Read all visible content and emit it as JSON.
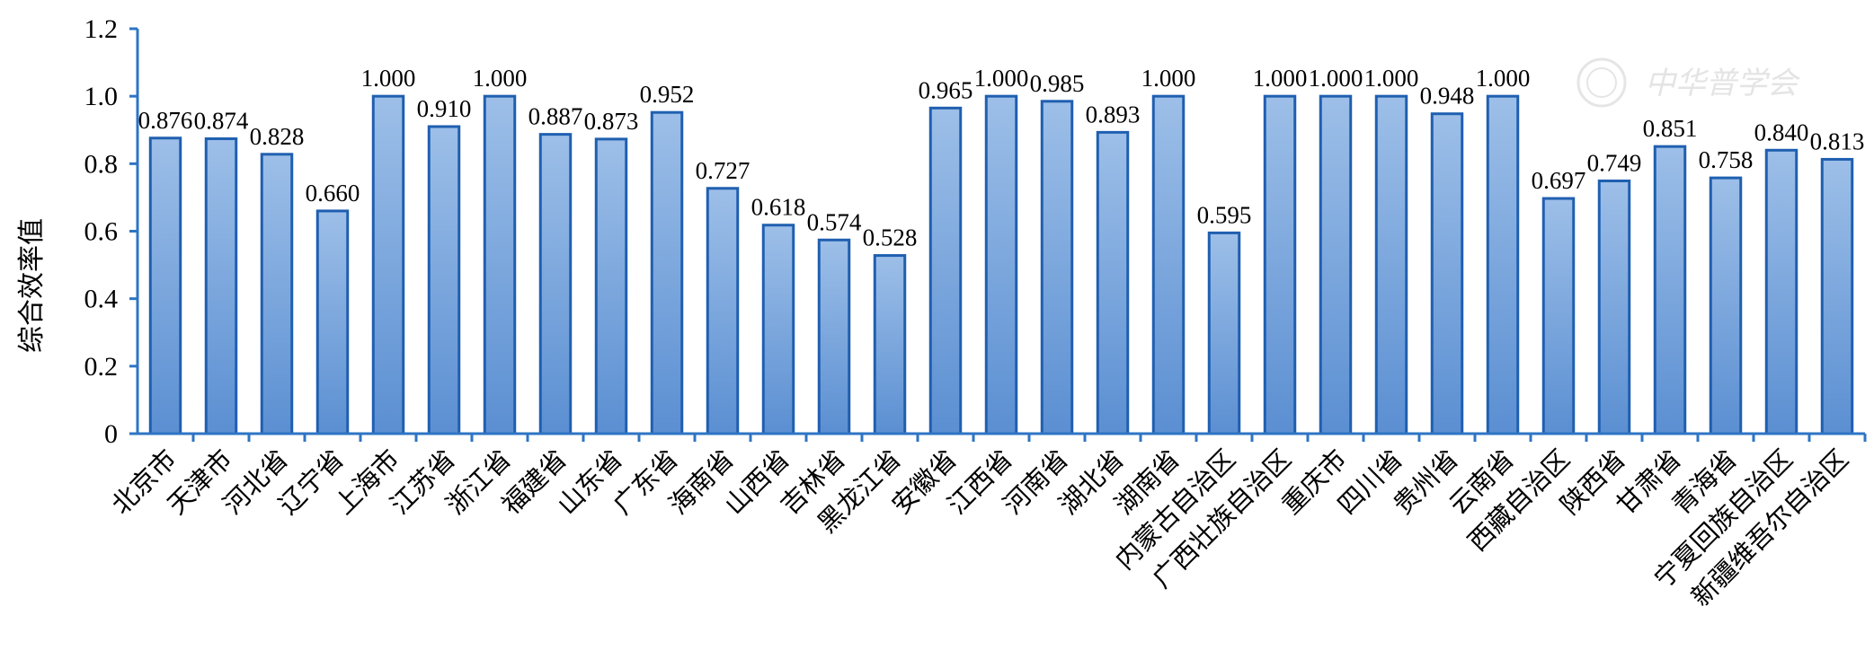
{
  "chart_data": {
    "type": "bar",
    "ylabel": "综合效率值",
    "xlabel": "",
    "ylim": [
      0,
      1.2
    ],
    "yticks": [
      "0",
      "0.2",
      "0.4",
      "0.6",
      "0.8",
      "1.0",
      "1.2"
    ],
    "categories": [
      "北京市",
      "天津市",
      "河北省",
      "辽宁省",
      "上海市",
      "江苏省",
      "浙江省",
      "福建省",
      "山东省",
      "广东省",
      "海南省",
      "山西省",
      "吉林省",
      "黑龙江省",
      "安徽省",
      "江西省",
      "河南省",
      "湖北省",
      "湖南省",
      "内蒙古自治区",
      "广西壮族自治区",
      "重庆市",
      "四川省",
      "贵州省",
      "云南省",
      "西藏自治区",
      "陕西省",
      "甘肃省",
      "青海省",
      "宁夏回族自治区",
      "新疆维吾尔自治区"
    ],
    "values": [
      0.876,
      0.874,
      0.828,
      0.66,
      1.0,
      0.91,
      1.0,
      0.887,
      0.873,
      0.952,
      0.727,
      0.618,
      0.574,
      0.528,
      0.965,
      1.0,
      0.985,
      0.893,
      1.0,
      0.595,
      1.0,
      1.0,
      1.0,
      0.948,
      1.0,
      0.697,
      0.749,
      0.851,
      0.758,
      0.84,
      0.813
    ],
    "value_labels": [
      "0.876",
      "0.874",
      "0.828",
      "0.660",
      "1.000",
      "0.910",
      "1.000",
      "0.887",
      "0.873",
      "0.952",
      "0.727",
      "0.618",
      "0.574",
      "0.528",
      "0.965",
      "1.000",
      "0.985",
      "0.893",
      "1.000",
      "0.595",
      "1.000",
      "1.000",
      "1.000",
      "0.948",
      "1.000",
      "0.697",
      "0.749",
      "0.851",
      "0.758",
      "0.840",
      "0.813"
    ],
    "grid": false,
    "legend": "none",
    "colors": {
      "bar_top": "#9dbfe8",
      "bar_bottom": "#5b8fd2",
      "bar_edge": "#1f5fb0",
      "axis": "#2e74c4"
    }
  },
  "watermark": {
    "text": "中华普学会"
  }
}
